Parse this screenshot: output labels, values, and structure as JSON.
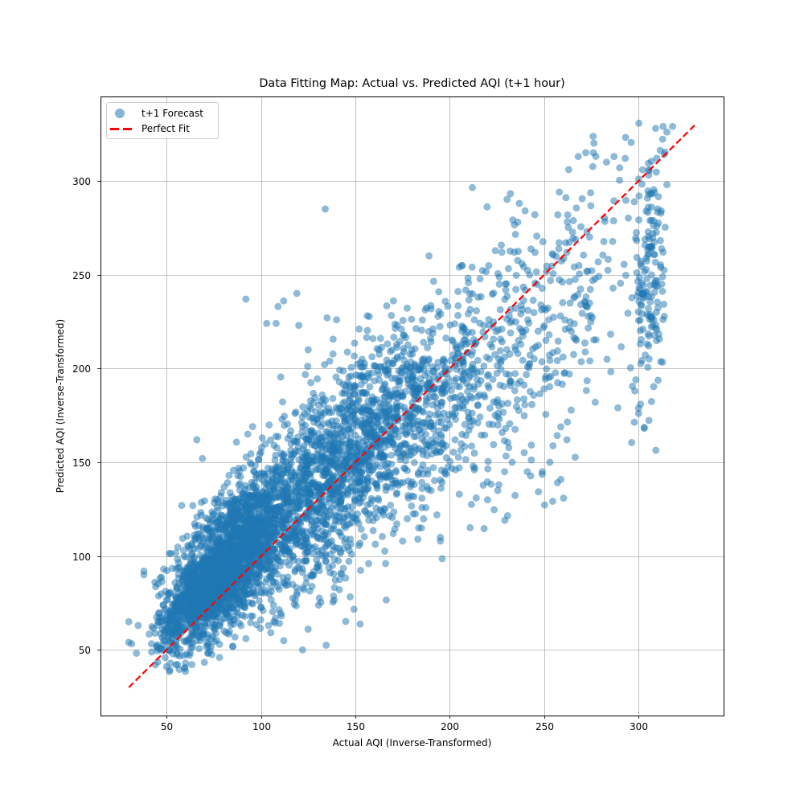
{
  "chart_data": {
    "type": "scatter",
    "title": "Data Fitting Map: Actual vs. Predicted AQI (t+1 hour)",
    "xlabel": "Actual AQI (Inverse-Transformed)",
    "ylabel": "Predicted AQI (Inverse-Transformed)",
    "xlim": [
      15,
      345
    ],
    "ylim": [
      15,
      345
    ],
    "xticks": [
      50,
      100,
      150,
      200,
      250,
      300
    ],
    "yticks": [
      50,
      100,
      150,
      200,
      250,
      300
    ],
    "grid": true,
    "legend_position": "upper left",
    "legend": [
      {
        "label": "t+1 Forecast",
        "type": "scatter",
        "color": "#1f77b4",
        "alpha": 0.5
      },
      {
        "label": "Perfect Fit",
        "type": "line",
        "style": "dashed",
        "color": "#ff0000"
      }
    ],
    "series": [
      {
        "name": "t+1 Forecast",
        "color": "#1f77b4",
        "alpha": 0.5,
        "approx_point_count": 5000,
        "description": "Dense cloud along diagonal; densest at actual 60-110 / predicted 60-140; widening spread at higher AQI; vertical band near actual ~305-315",
        "clusters": [
          {
            "cx": 85,
            "cy": 100,
            "sx": 16,
            "sy": 22,
            "rho": 0.6,
            "n": 1700
          },
          {
            "cx": 70,
            "cy": 80,
            "sx": 12,
            "sy": 14,
            "rho": 0.7,
            "n": 700
          },
          {
            "cx": 130,
            "cy": 135,
            "sx": 22,
            "sy": 30,
            "rho": 0.55,
            "n": 1100
          },
          {
            "cx": 170,
            "cy": 170,
            "sx": 22,
            "sy": 28,
            "rho": 0.5,
            "n": 700
          },
          {
            "cx": 215,
            "cy": 200,
            "sx": 22,
            "sy": 35,
            "rho": 0.4,
            "n": 350
          },
          {
            "cx": 262,
            "cy": 235,
            "sx": 18,
            "sy": 40,
            "rho": 0.4,
            "n": 180
          },
          {
            "cx": 306,
            "cy": 250,
            "sx": 4,
            "sy": 40,
            "rho": 0.1,
            "n": 170
          }
        ],
        "points": [
          {
            "x": 134,
            "y": 285
          },
          {
            "x": 92,
            "y": 237
          },
          {
            "x": 38,
            "y": 92
          },
          {
            "x": 38,
            "y": 90
          },
          {
            "x": 30,
            "y": 65
          },
          {
            "x": 30,
            "y": 54
          },
          {
            "x": 44,
            "y": 42
          },
          {
            "x": 50,
            "y": 41
          },
          {
            "x": 55,
            "y": 42
          },
          {
            "x": 60,
            "y": 43
          },
          {
            "x": 313,
            "y": 329
          },
          {
            "x": 318,
            "y": 329
          },
          {
            "x": 309,
            "y": 328
          },
          {
            "x": 315,
            "y": 326
          },
          {
            "x": 272,
            "y": 315
          },
          {
            "x": 276,
            "y": 315
          },
          {
            "x": 268,
            "y": 313
          },
          {
            "x": 287,
            "y": 313
          },
          {
            "x": 283,
            "y": 310
          },
          {
            "x": 290,
            "y": 307
          },
          {
            "x": 263,
            "y": 306
          },
          {
            "x": 300,
            "y": 301
          },
          {
            "x": 258,
            "y": 294
          },
          {
            "x": 245,
            "y": 282
          },
          {
            "x": 236,
            "y": 278
          },
          {
            "x": 189,
            "y": 260
          },
          {
            "x": 205,
            "y": 254
          },
          {
            "x": 313,
            "y": 262
          },
          {
            "x": 307,
            "y": 293
          },
          {
            "x": 315,
            "y": 298
          },
          {
            "x": 312,
            "y": 284
          },
          {
            "x": 302,
            "y": 240
          },
          {
            "x": 300,
            "y": 176
          },
          {
            "x": 301,
            "y": 181
          },
          {
            "x": 298,
            "y": 188
          },
          {
            "x": 289,
            "y": 179
          },
          {
            "x": 277,
            "y": 182
          },
          {
            "x": 262,
            "y": 162
          },
          {
            "x": 253,
            "y": 150
          },
          {
            "x": 249,
            "y": 145
          },
          {
            "x": 241,
            "y": 145
          },
          {
            "x": 229,
            "y": 145
          },
          {
            "x": 213,
            "y": 146
          },
          {
            "x": 205,
            "y": 147
          },
          {
            "x": 203,
            "y": 146
          },
          {
            "x": 188,
            "y": 137
          },
          {
            "x": 180,
            "y": 132
          },
          {
            "x": 175,
            "y": 108
          },
          {
            "x": 195,
            "y": 108
          },
          {
            "x": 195,
            "y": 110
          },
          {
            "x": 170,
            "y": 112
          },
          {
            "x": 185,
            "y": 115
          },
          {
            "x": 205,
            "y": 133
          },
          {
            "x": 214,
            "y": 131
          },
          {
            "x": 220,
            "y": 130
          },
          {
            "x": 226,
            "y": 138
          },
          {
            "x": 233,
            "y": 150
          },
          {
            "x": 157,
            "y": 96
          },
          {
            "x": 166,
            "y": 96
          },
          {
            "x": 148,
            "y": 101
          },
          {
            "x": 109,
            "y": 233
          },
          {
            "x": 112,
            "y": 236
          },
          {
            "x": 119,
            "y": 240
          },
          {
            "x": 103,
            "y": 224
          },
          {
            "x": 108,
            "y": 224
          },
          {
            "x": 120,
            "y": 223
          },
          {
            "x": 135,
            "y": 227
          },
          {
            "x": 140,
            "y": 226
          },
          {
            "x": 152,
            "y": 221
          },
          {
            "x": 125,
            "y": 210
          },
          {
            "x": 93,
            "y": 165
          },
          {
            "x": 66,
            "y": 162
          },
          {
            "x": 69,
            "y": 152
          },
          {
            "x": 58,
            "y": 127
          },
          {
            "x": 85,
            "y": 52
          },
          {
            "x": 78,
            "y": 46
          },
          {
            "x": 72,
            "y": 52
          },
          {
            "x": 92,
            "y": 56
          },
          {
            "x": 104,
            "y": 63
          }
        ]
      },
      {
        "name": "Perfect Fit",
        "type": "line",
        "style": "dashed",
        "color": "#ff0000",
        "x": [
          30,
          330
        ],
        "y": [
          30,
          330
        ]
      }
    ]
  }
}
